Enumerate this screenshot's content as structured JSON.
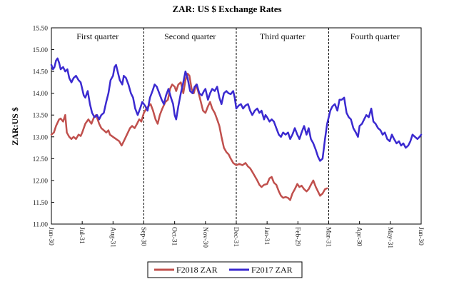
{
  "chart_data": {
    "type": "line",
    "title": "ZAR: US $ Exchange Rates",
    "xlabel": "",
    "ylabel": "ZAR:US $",
    "ylim": [
      11.0,
      15.5
    ],
    "yticks": [
      "11.00",
      "11.50",
      "12.00",
      "12.50",
      "13.00",
      "13.50",
      "14.00",
      "14.50",
      "15.00",
      "15.50"
    ],
    "x_tick_labels": [
      "Jun-30",
      "Jul-31",
      "Aug-31",
      "Sep-30",
      "Oct-31",
      "Nov-30",
      "Dec-31",
      "Jan-31",
      "Feb-29",
      "Mar-31",
      "Apr-30",
      "May-31",
      "Jun-30"
    ],
    "quarter_labels": [
      "First quarter",
      "Second quarter",
      "Third quarter",
      "Fourth quarter"
    ],
    "quarter_dividers_at_tick": [
      3,
      6,
      9,
      12
    ],
    "grid": false,
    "legend_position": "bottom-center",
    "series": [
      {
        "name": "F2018 ZAR",
        "color": "#c0504d",
        "points": [
          [
            0,
            13.05
          ],
          [
            0.08,
            13.1
          ],
          [
            0.15,
            13.25
          ],
          [
            0.25,
            13.4
          ],
          [
            0.3,
            13.42
          ],
          [
            0.38,
            13.35
          ],
          [
            0.45,
            13.5
          ],
          [
            0.5,
            13.1
          ],
          [
            0.58,
            13.0
          ],
          [
            0.65,
            12.95
          ],
          [
            0.72,
            13.0
          ],
          [
            0.8,
            12.95
          ],
          [
            0.88,
            13.05
          ],
          [
            0.95,
            13.02
          ],
          [
            1.0,
            13.1
          ],
          [
            1.1,
            13.3
          ],
          [
            1.2,
            13.4
          ],
          [
            1.3,
            13.3
          ],
          [
            1.38,
            13.45
          ],
          [
            1.45,
            13.5
          ],
          [
            1.5,
            13.4
          ],
          [
            1.55,
            13.3
          ],
          [
            1.62,
            13.2
          ],
          [
            1.7,
            13.15
          ],
          [
            1.78,
            13.1
          ],
          [
            1.85,
            13.15
          ],
          [
            1.9,
            13.05
          ],
          [
            2.0,
            13.0
          ],
          [
            2.1,
            12.95
          ],
          [
            2.2,
            12.9
          ],
          [
            2.28,
            12.8
          ],
          [
            2.35,
            12.9
          ],
          [
            2.45,
            13.05
          ],
          [
            2.55,
            13.2
          ],
          [
            2.62,
            13.25
          ],
          [
            2.7,
            13.2
          ],
          [
            2.78,
            13.3
          ],
          [
            2.85,
            13.4
          ],
          [
            2.92,
            13.35
          ],
          [
            3.0,
            13.55
          ],
          [
            3.08,
            13.65
          ],
          [
            3.15,
            13.7
          ],
          [
            3.22,
            13.75
          ],
          [
            3.3,
            13.6
          ],
          [
            3.38,
            13.4
          ],
          [
            3.45,
            13.3
          ],
          [
            3.52,
            13.5
          ],
          [
            3.6,
            13.65
          ],
          [
            3.7,
            13.8
          ],
          [
            3.78,
            13.85
          ],
          [
            3.85,
            14.1
          ],
          [
            3.92,
            14.2
          ],
          [
            4.0,
            14.15
          ],
          [
            4.05,
            14.05
          ],
          [
            4.12,
            14.2
          ],
          [
            4.2,
            14.25
          ],
          [
            4.28,
            14.0
          ],
          [
            4.35,
            14.3
          ],
          [
            4.42,
            14.45
          ],
          [
            4.48,
            14.4
          ],
          [
            4.55,
            14.1
          ],
          [
            4.62,
            14.0
          ],
          [
            4.7,
            14.2
          ],
          [
            4.78,
            14.0
          ],
          [
            4.85,
            13.8
          ],
          [
            4.92,
            13.6
          ],
          [
            5.0,
            13.55
          ],
          [
            5.08,
            13.7
          ],
          [
            5.15,
            13.8
          ],
          [
            5.22,
            13.65
          ],
          [
            5.3,
            13.55
          ],
          [
            5.38,
            13.4
          ],
          [
            5.45,
            13.25
          ],
          [
            5.52,
            13.0
          ],
          [
            5.6,
            12.75
          ],
          [
            5.68,
            12.65
          ],
          [
            5.75,
            12.6
          ],
          [
            5.82,
            12.5
          ],
          [
            5.9,
            12.4
          ],
          [
            6.0,
            12.35
          ],
          [
            6.1,
            12.38
          ],
          [
            6.2,
            12.35
          ],
          [
            6.3,
            12.4
          ],
          [
            6.38,
            12.32
          ],
          [
            6.45,
            12.28
          ],
          [
            6.52,
            12.2
          ],
          [
            6.6,
            12.1
          ],
          [
            6.68,
            12.0
          ],
          [
            6.75,
            11.9
          ],
          [
            6.82,
            11.85
          ],
          [
            6.9,
            11.9
          ],
          [
            7.0,
            11.92
          ],
          [
            7.08,
            12.05
          ],
          [
            7.15,
            12.08
          ],
          [
            7.22,
            11.95
          ],
          [
            7.3,
            11.9
          ],
          [
            7.38,
            11.75
          ],
          [
            7.45,
            11.65
          ],
          [
            7.52,
            11.6
          ],
          [
            7.6,
            11.62
          ],
          [
            7.68,
            11.6
          ],
          [
            7.75,
            11.55
          ],
          [
            7.82,
            11.7
          ],
          [
            7.9,
            11.8
          ],
          [
            7.98,
            11.92
          ],
          [
            8.05,
            11.85
          ],
          [
            8.12,
            11.88
          ],
          [
            8.2,
            11.8
          ],
          [
            8.28,
            11.75
          ],
          [
            8.35,
            11.8
          ],
          [
            8.42,
            11.9
          ],
          [
            8.5,
            12.0
          ],
          [
            8.58,
            11.85
          ],
          [
            8.65,
            11.75
          ],
          [
            8.72,
            11.65
          ],
          [
            8.8,
            11.7
          ],
          [
            8.88,
            11.8
          ],
          [
            8.95,
            11.82
          ]
        ]
      },
      {
        "name": "F2017 ZAR",
        "color": "#3b2ad0",
        "points": [
          [
            0,
            14.65
          ],
          [
            0.05,
            14.55
          ],
          [
            0.1,
            14.6
          ],
          [
            0.15,
            14.75
          ],
          [
            0.2,
            14.8
          ],
          [
            0.25,
            14.7
          ],
          [
            0.3,
            14.55
          ],
          [
            0.38,
            14.6
          ],
          [
            0.45,
            14.5
          ],
          [
            0.52,
            14.55
          ],
          [
            0.58,
            14.35
          ],
          [
            0.65,
            14.25
          ],
          [
            0.72,
            14.35
          ],
          [
            0.8,
            14.4
          ],
          [
            0.88,
            14.3
          ],
          [
            0.95,
            14.25
          ],
          [
            1.0,
            14.1
          ],
          [
            1.05,
            13.95
          ],
          [
            1.1,
            13.9
          ],
          [
            1.18,
            14.05
          ],
          [
            1.25,
            13.75
          ],
          [
            1.32,
            13.55
          ],
          [
            1.4,
            13.45
          ],
          [
            1.48,
            13.5
          ],
          [
            1.55,
            13.4
          ],
          [
            1.62,
            13.5
          ],
          [
            1.7,
            13.55
          ],
          [
            1.78,
            13.8
          ],
          [
            1.85,
            14.0
          ],
          [
            1.92,
            14.3
          ],
          [
            2.0,
            14.4
          ],
          [
            2.05,
            14.6
          ],
          [
            2.1,
            14.65
          ],
          [
            2.15,
            14.5
          ],
          [
            2.22,
            14.3
          ],
          [
            2.3,
            14.2
          ],
          [
            2.35,
            14.4
          ],
          [
            2.42,
            14.35
          ],
          [
            2.5,
            14.2
          ],
          [
            2.58,
            14.0
          ],
          [
            2.65,
            13.9
          ],
          [
            2.72,
            13.65
          ],
          [
            2.8,
            13.5
          ],
          [
            2.88,
            13.65
          ],
          [
            2.95,
            13.8
          ],
          [
            3.0,
            13.75
          ],
          [
            3.05,
            13.7
          ],
          [
            3.12,
            13.6
          ],
          [
            3.2,
            13.9
          ],
          [
            3.28,
            14.05
          ],
          [
            3.35,
            14.2
          ],
          [
            3.42,
            14.15
          ],
          [
            3.5,
            14.0
          ],
          [
            3.58,
            13.85
          ],
          [
            3.65,
            13.75
          ],
          [
            3.72,
            13.95
          ],
          [
            3.8,
            14.1
          ],
          [
            3.88,
            13.9
          ],
          [
            3.95,
            13.75
          ],
          [
            4.0,
            13.5
          ],
          [
            4.05,
            13.4
          ],
          [
            4.12,
            13.7
          ],
          [
            4.2,
            14.0
          ],
          [
            4.28,
            14.25
          ],
          [
            4.35,
            14.5
          ],
          [
            4.42,
            14.35
          ],
          [
            4.5,
            14.05
          ],
          [
            4.58,
            14.0
          ],
          [
            4.65,
            14.15
          ],
          [
            4.72,
            14.2
          ],
          [
            4.8,
            14.0
          ],
          [
            4.88,
            13.95
          ],
          [
            4.95,
            14.05
          ],
          [
            5.0,
            14.1
          ],
          [
            5.08,
            13.85
          ],
          [
            5.15,
            14.0
          ],
          [
            5.22,
            14.1
          ],
          [
            5.3,
            14.05
          ],
          [
            5.38,
            14.15
          ],
          [
            5.45,
            13.9
          ],
          [
            5.52,
            13.75
          ],
          [
            5.6,
            14.0
          ],
          [
            5.68,
            14.05
          ],
          [
            5.75,
            14.0
          ],
          [
            5.82,
            13.98
          ],
          [
            5.9,
            14.05
          ],
          [
            5.95,
            13.9
          ],
          [
            6.0,
            13.65
          ],
          [
            6.08,
            13.72
          ],
          [
            6.15,
            13.75
          ],
          [
            6.22,
            13.65
          ],
          [
            6.3,
            13.72
          ],
          [
            6.38,
            13.75
          ],
          [
            6.45,
            13.6
          ],
          [
            6.52,
            13.5
          ],
          [
            6.6,
            13.6
          ],
          [
            6.68,
            13.65
          ],
          [
            6.75,
            13.55
          ],
          [
            6.82,
            13.6
          ],
          [
            6.9,
            13.4
          ],
          [
            6.95,
            13.5
          ],
          [
            7.0,
            13.45
          ],
          [
            7.08,
            13.35
          ],
          [
            7.15,
            13.4
          ],
          [
            7.22,
            13.35
          ],
          [
            7.3,
            13.2
          ],
          [
            7.38,
            13.05
          ],
          [
            7.45,
            13.0
          ],
          [
            7.52,
            13.1
          ],
          [
            7.6,
            13.05
          ],
          [
            7.68,
            13.1
          ],
          [
            7.75,
            12.95
          ],
          [
            7.82,
            13.05
          ],
          [
            7.9,
            13.2
          ],
          [
            7.98,
            13.05
          ],
          [
            8.05,
            12.95
          ],
          [
            8.12,
            13.1
          ],
          [
            8.2,
            13.25
          ],
          [
            8.28,
            13.05
          ],
          [
            8.35,
            13.2
          ],
          [
            8.42,
            12.95
          ],
          [
            8.5,
            12.85
          ],
          [
            8.58,
            12.7
          ],
          [
            8.65,
            12.55
          ],
          [
            8.72,
            12.45
          ],
          [
            8.8,
            12.5
          ],
          [
            8.88,
            12.95
          ],
          [
            8.95,
            13.3
          ],
          [
            9.0,
            13.45
          ],
          [
            9.05,
            13.6
          ],
          [
            9.12,
            13.7
          ],
          [
            9.2,
            13.75
          ],
          [
            9.28,
            13.6
          ],
          [
            9.35,
            13.85
          ],
          [
            9.42,
            13.85
          ],
          [
            9.5,
            13.9
          ],
          [
            9.58,
            13.55
          ],
          [
            9.65,
            13.45
          ],
          [
            9.72,
            13.4
          ],
          [
            9.8,
            13.2
          ],
          [
            9.88,
            13.1
          ],
          [
            9.95,
            13.0
          ],
          [
            10.0,
            13.25
          ],
          [
            10.08,
            13.3
          ],
          [
            10.15,
            13.4
          ],
          [
            10.22,
            13.5
          ],
          [
            10.3,
            13.45
          ],
          [
            10.38,
            13.65
          ],
          [
            10.45,
            13.35
          ],
          [
            10.52,
            13.3
          ],
          [
            10.6,
            13.2
          ],
          [
            10.68,
            13.15
          ],
          [
            10.75,
            13.05
          ],
          [
            10.82,
            13.1
          ],
          [
            10.9,
            12.95
          ],
          [
            10.98,
            12.9
          ],
          [
            11.05,
            13.05
          ],
          [
            11.12,
            12.95
          ],
          [
            11.2,
            12.85
          ],
          [
            11.28,
            12.9
          ],
          [
            11.35,
            12.8
          ],
          [
            11.42,
            12.85
          ],
          [
            11.5,
            12.75
          ],
          [
            11.58,
            12.8
          ],
          [
            11.65,
            12.9
          ],
          [
            11.72,
            13.05
          ],
          [
            11.8,
            13.0
          ],
          [
            11.88,
            12.95
          ],
          [
            11.95,
            13.0
          ],
          [
            12.0,
            13.05
          ]
        ]
      }
    ]
  }
}
